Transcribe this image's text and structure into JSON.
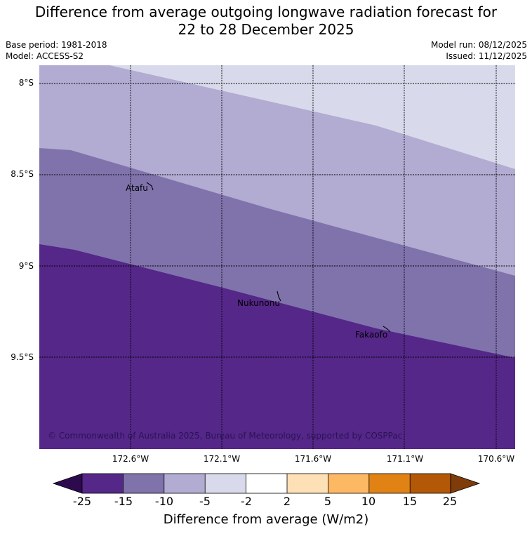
{
  "title": {
    "line1": "Difference from average outgoing longwave radiation forecast for",
    "line2": "22 to 28 December 2025"
  },
  "meta": {
    "base_period": "Base period: 1981-2018",
    "model": "Model: ACCESS-S2",
    "model_run": "Model run: 08/12/2025",
    "issued": "Issued: 11/12/2025"
  },
  "axes": {
    "lat_labels": [
      "8°S",
      "8.5°S",
      "9°S",
      "9.5°S"
    ],
    "lon_labels": [
      "172.6°W",
      "172.1°W",
      "171.6°W",
      "171.1°W",
      "170.6°W"
    ]
  },
  "places": {
    "atafu": "Atafu",
    "nukunonu": "Nukunonu",
    "fakaofo": "Fakaofo"
  },
  "copyright": "© Commonwealth of Australia 2025, Bureau of Meteorology, supported by COSPPac",
  "colors": {
    "below_minus25": "#2d0a4e",
    "minus25_to_minus15": "#542788",
    "minus15_to_minus10": "#8073ac",
    "minus10_to_minus5": "#b2abd2",
    "minus5_to_minus2": "#d8daeb",
    "minus2_to_2": "#ffffff",
    "2_to_5": "#fee0b6",
    "5_to_10": "#fdb863",
    "10_to_15": "#e08214",
    "15_to_25": "#b35806",
    "above_25": "#7f3b08"
  },
  "colorbar": {
    "ticks": [
      "-25",
      "-15",
      "-10",
      "-5",
      "-2",
      "2",
      "5",
      "10",
      "15",
      "25"
    ],
    "label": "Difference from average (W/m2)"
  }
}
